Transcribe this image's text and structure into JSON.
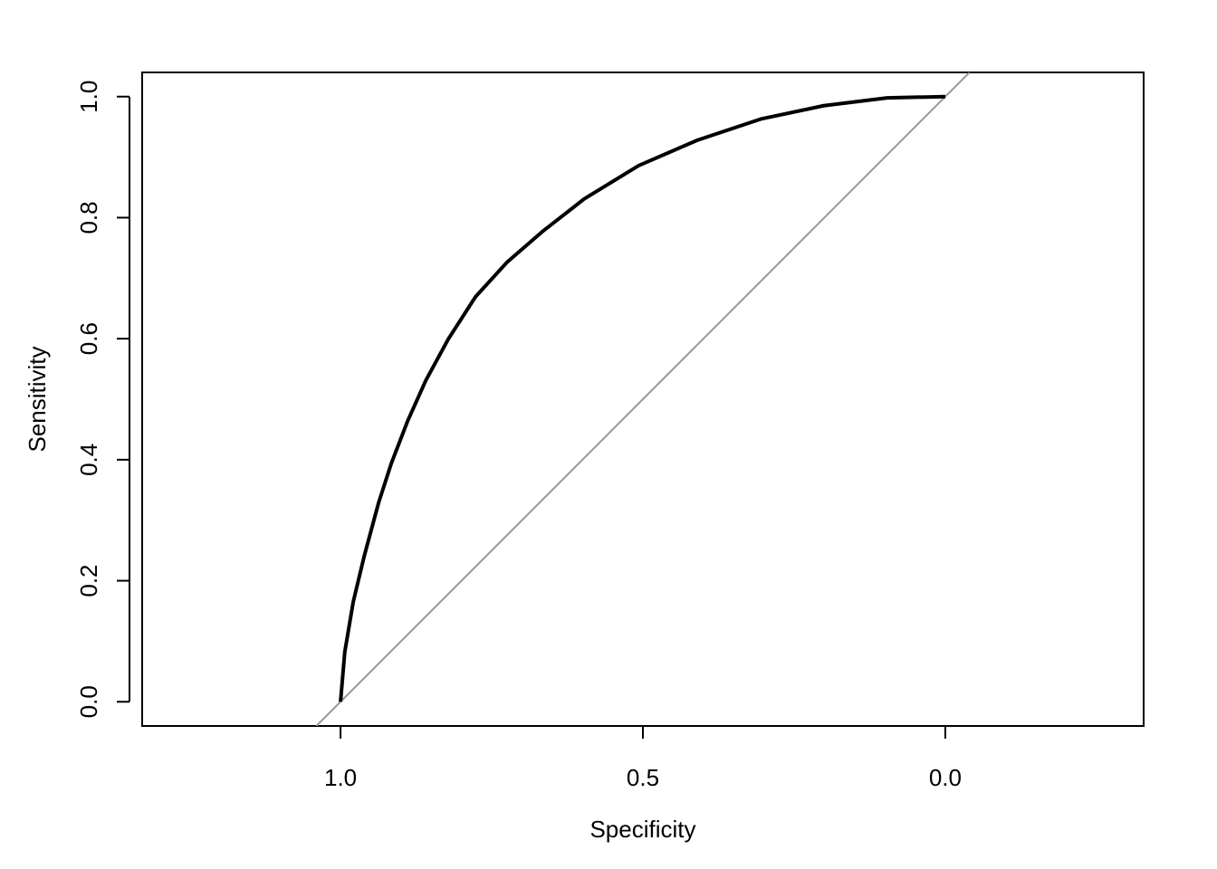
{
  "chart_data": {
    "type": "line",
    "xlabel": "Specificity",
    "ylabel": "Sensitivity",
    "x": [
      1.0,
      0.993,
      0.979,
      0.961,
      0.937,
      0.916,
      0.889,
      0.859,
      0.822,
      0.777,
      0.725,
      0.665,
      0.597,
      0.507,
      0.41,
      0.305,
      0.201,
      0.096,
      0.0
    ],
    "values": [
      0.0,
      0.082,
      0.165,
      0.24,
      0.329,
      0.394,
      0.464,
      0.531,
      0.599,
      0.669,
      0.726,
      0.778,
      0.831,
      0.886,
      0.928,
      0.963,
      0.985,
      0.998,
      1.0
    ],
    "color": "#000000",
    "diagonal": true,
    "diagonal_color": "#999999",
    "xlim": [
      1.328,
      -0.328
    ],
    "ylim": [
      -0.04,
      1.04
    ],
    "xticks": [
      {
        "value": 1,
        "label": "1.0"
      },
      0.5,
      {
        "value": 0,
        "label": "0.0"
      }
    ],
    "yticks": [
      {
        "value": 0,
        "label": "0.0"
      },
      0.2,
      0.4,
      0.6,
      0.8,
      {
        "value": 1,
        "label": "1.0"
      }
    ]
  }
}
